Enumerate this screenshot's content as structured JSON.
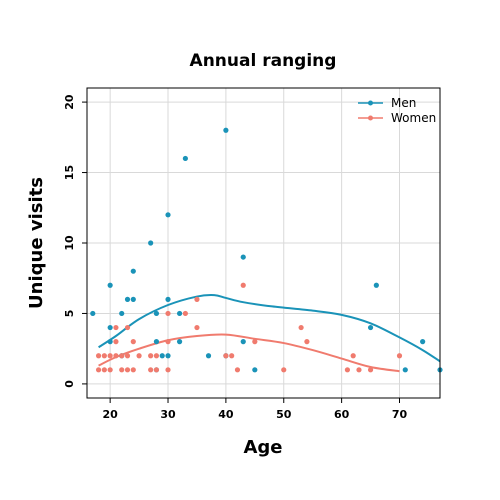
{
  "chart_data": {
    "type": "scatter",
    "title": "Annual ranging",
    "xlabel": "Age",
    "ylabel": "Unique visits",
    "xlim": [
      16,
      77
    ],
    "ylim": [
      -1,
      21
    ],
    "xticks": [
      "20",
      "30",
      "40",
      "50",
      "60",
      "70"
    ],
    "yticks": [
      "0",
      "5",
      "10",
      "15",
      "20"
    ],
    "grid": true,
    "legend_position": "top-right",
    "series": [
      {
        "name": "Men",
        "color": "#1a93b8",
        "points": [
          [
            17,
            5
          ],
          [
            20,
            7
          ],
          [
            20,
            4
          ],
          [
            20,
            3
          ],
          [
            22,
            5
          ],
          [
            22,
            2
          ],
          [
            23,
            6
          ],
          [
            24,
            8
          ],
          [
            24,
            6
          ],
          [
            27,
            10
          ],
          [
            28,
            5
          ],
          [
            28,
            3
          ],
          [
            28,
            1
          ],
          [
            29,
            2
          ],
          [
            30,
            12
          ],
          [
            30,
            6
          ],
          [
            30,
            2
          ],
          [
            32,
            5
          ],
          [
            32,
            3
          ],
          [
            33,
            16
          ],
          [
            37,
            2
          ],
          [
            40,
            18
          ],
          [
            40,
            2
          ],
          [
            43,
            9
          ],
          [
            43,
            3
          ],
          [
            45,
            1
          ],
          [
            65,
            4
          ],
          [
            66,
            7
          ],
          [
            71,
            1
          ],
          [
            74,
            3
          ],
          [
            77,
            1
          ]
        ],
        "trend": [
          [
            18,
            2.6
          ],
          [
            21,
            3.4
          ],
          [
            25,
            4.6
          ],
          [
            30,
            5.6
          ],
          [
            35,
            6.2
          ],
          [
            38,
            6.3
          ],
          [
            40,
            6.1
          ],
          [
            43,
            5.8
          ],
          [
            48,
            5.5
          ],
          [
            55,
            5.2
          ],
          [
            60,
            4.9
          ],
          [
            65,
            4.3
          ],
          [
            70,
            3.3
          ],
          [
            74,
            2.4
          ],
          [
            77,
            1.6
          ]
        ]
      },
      {
        "name": "Women",
        "color": "#f07b6e",
        "points": [
          [
            18,
            2
          ],
          [
            18,
            1
          ],
          [
            19,
            2
          ],
          [
            19,
            1
          ],
          [
            20,
            2
          ],
          [
            20,
            1
          ],
          [
            21,
            4
          ],
          [
            21,
            3
          ],
          [
            21,
            2
          ],
          [
            22,
            2
          ],
          [
            22,
            1
          ],
          [
            23,
            4
          ],
          [
            23,
            2
          ],
          [
            23,
            1
          ],
          [
            24,
            3
          ],
          [
            24,
            1
          ],
          [
            25,
            2
          ],
          [
            27,
            2
          ],
          [
            27,
            1
          ],
          [
            28,
            2
          ],
          [
            28,
            1
          ],
          [
            30,
            5
          ],
          [
            30,
            3
          ],
          [
            30,
            1
          ],
          [
            33,
            5
          ],
          [
            35,
            6
          ],
          [
            35,
            4
          ],
          [
            40,
            2
          ],
          [
            41,
            2
          ],
          [
            42,
            1
          ],
          [
            43,
            7
          ],
          [
            45,
            3
          ],
          [
            50,
            1
          ],
          [
            53,
            4
          ],
          [
            54,
            3
          ],
          [
            61,
            1
          ],
          [
            62,
            2
          ],
          [
            63,
            1
          ],
          [
            65,
            1
          ],
          [
            70,
            2
          ]
        ],
        "trend": [
          [
            18,
            1.3
          ],
          [
            21,
            1.9
          ],
          [
            25,
            2.5
          ],
          [
            30,
            3.1
          ],
          [
            35,
            3.4
          ],
          [
            40,
            3.5
          ],
          [
            45,
            3.2
          ],
          [
            50,
            2.9
          ],
          [
            55,
            2.4
          ],
          [
            60,
            1.8
          ],
          [
            65,
            1.2
          ],
          [
            70,
            0.9
          ]
        ]
      }
    ]
  }
}
